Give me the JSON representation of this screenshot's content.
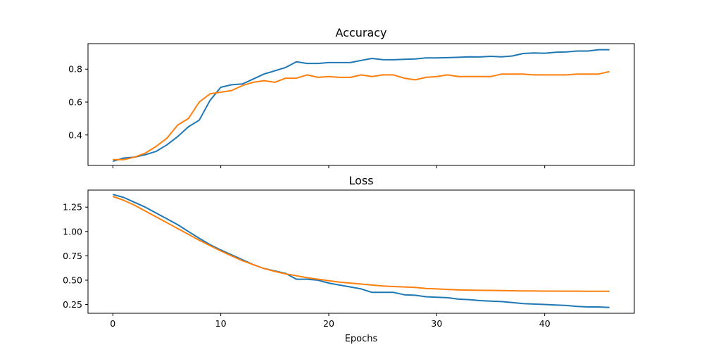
{
  "chart_data": [
    {
      "type": "line",
      "title": "Accuracy",
      "xlabel": "",
      "ylabel": "",
      "xlim": [
        -2.3,
        48.3
      ],
      "ylim": [
        0.215,
        0.955
      ],
      "xticks": [
        0,
        10,
        20,
        30,
        40
      ],
      "show_xtick_labels": false,
      "yticks": [
        0.4,
        0.6,
        0.8
      ],
      "ytick_labels": [
        "0.4",
        "0.6",
        "0.8"
      ],
      "grid": false,
      "x": [
        0,
        1,
        2,
        3,
        4,
        5,
        6,
        7,
        8,
        9,
        10,
        11,
        12,
        13,
        14,
        15,
        16,
        17,
        18,
        19,
        20,
        21,
        22,
        23,
        24,
        25,
        26,
        27,
        28,
        29,
        30,
        31,
        32,
        33,
        34,
        35,
        36,
        37,
        38,
        39,
        40,
        41,
        42,
        43,
        44,
        45,
        46
      ],
      "series": [
        {
          "color": "#1f77b4",
          "values": [
            0.24,
            0.26,
            0.265,
            0.28,
            0.3,
            0.34,
            0.39,
            0.45,
            0.49,
            0.61,
            0.69,
            0.705,
            0.71,
            0.74,
            0.77,
            0.79,
            0.81,
            0.845,
            0.835,
            0.835,
            0.84,
            0.84,
            0.84,
            0.853,
            0.865,
            0.858,
            0.857,
            0.86,
            0.862,
            0.868,
            0.868,
            0.87,
            0.872,
            0.875,
            0.874,
            0.878,
            0.875,
            0.88,
            0.895,
            0.898,
            0.897,
            0.903,
            0.905,
            0.91,
            0.91,
            0.918,
            0.918
          ]
        },
        {
          "color": "#ff7f0e",
          "values": [
            0.25,
            0.25,
            0.265,
            0.29,
            0.33,
            0.38,
            0.46,
            0.5,
            0.6,
            0.65,
            0.66,
            0.67,
            0.7,
            0.72,
            0.73,
            0.72,
            0.745,
            0.745,
            0.765,
            0.75,
            0.755,
            0.75,
            0.75,
            0.765,
            0.755,
            0.765,
            0.765,
            0.745,
            0.735,
            0.75,
            0.755,
            0.765,
            0.755,
            0.755,
            0.755,
            0.755,
            0.77,
            0.77,
            0.77,
            0.765,
            0.765,
            0.765,
            0.765,
            0.77,
            0.77,
            0.77,
            0.785
          ]
        }
      ]
    },
    {
      "type": "line",
      "title": "Loss",
      "xlabel": "Epochs",
      "ylabel": "",
      "xlim": [
        -2.3,
        48.3
      ],
      "ylim": [
        0.16,
        1.425
      ],
      "xticks": [
        0,
        10,
        20,
        30,
        40
      ],
      "xtick_labels": [
        "0",
        "10",
        "20",
        "30",
        "40"
      ],
      "show_xtick_labels": true,
      "yticks": [
        0.25,
        0.5,
        0.75,
        1.0,
        1.25
      ],
      "ytick_labels": [
        "0.25",
        "0.50",
        "0.75",
        "1.00",
        "1.25"
      ],
      "grid": false,
      "x": [
        0,
        1,
        2,
        3,
        4,
        5,
        6,
        7,
        8,
        9,
        10,
        11,
        12,
        13,
        14,
        15,
        16,
        17,
        18,
        19,
        20,
        21,
        22,
        23,
        24,
        25,
        26,
        27,
        28,
        29,
        30,
        31,
        32,
        33,
        34,
        35,
        36,
        37,
        38,
        39,
        40,
        41,
        42,
        43,
        44,
        45,
        46
      ],
      "series": [
        {
          "color": "#1f77b4",
          "values": [
            1.38,
            1.35,
            1.3,
            1.25,
            1.19,
            1.13,
            1.07,
            1.0,
            0.93,
            0.865,
            0.81,
            0.76,
            0.71,
            0.66,
            0.62,
            0.595,
            0.57,
            0.51,
            0.51,
            0.5,
            0.47,
            0.45,
            0.43,
            0.41,
            0.375,
            0.375,
            0.375,
            0.35,
            0.345,
            0.33,
            0.325,
            0.32,
            0.305,
            0.3,
            0.29,
            0.285,
            0.28,
            0.27,
            0.26,
            0.255,
            0.25,
            0.245,
            0.24,
            0.23,
            0.225,
            0.225,
            0.22
          ]
        },
        {
          "color": "#ff7f0e",
          "values": [
            1.36,
            1.32,
            1.27,
            1.21,
            1.15,
            1.09,
            1.03,
            0.97,
            0.91,
            0.855,
            0.8,
            0.75,
            0.7,
            0.66,
            0.62,
            0.59,
            0.565,
            0.545,
            0.525,
            0.51,
            0.495,
            0.48,
            0.47,
            0.46,
            0.45,
            0.44,
            0.435,
            0.43,
            0.425,
            0.415,
            0.41,
            0.405,
            0.4,
            0.398,
            0.396,
            0.395,
            0.393,
            0.391,
            0.39,
            0.389,
            0.388,
            0.388,
            0.387,
            0.387,
            0.386,
            0.386,
            0.386
          ]
        }
      ]
    }
  ]
}
